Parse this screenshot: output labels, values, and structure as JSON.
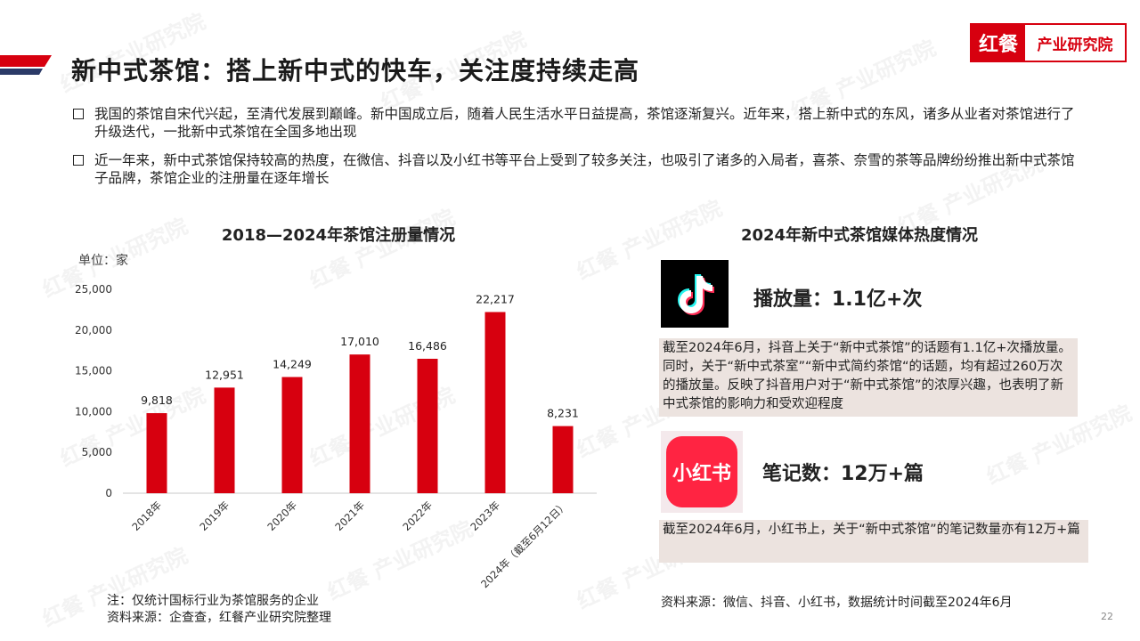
{
  "header": {
    "title": "新中式茶馆：搭上新中式的快车，关注度持续走高",
    "logo_mark": "红餐",
    "logo_text": "产业研究院"
  },
  "bullets": [
    "我国的茶馆自宋代兴起，至清代发展到巅峰。新中国成立后，随着人民生活水平日益提高，茶馆逐渐复兴。近年来，搭上新中式的东风，诸多从业者对茶馆进行了升级迭代，一批新中式茶馆在全国多地出现",
    "近一年来，新中式茶馆保持较高的热度，在微信、抖音以及小红书等平台上受到了较多关注，也吸引了诸多的入局者，喜茶、奈雪的茶等品牌纷纷推出新中式茶馆子品牌，茶馆企业的注册量在逐年增长"
  ],
  "chart_data": {
    "type": "bar",
    "title": "2018—2024年茶馆注册量情况",
    "unit_label": "单位：家",
    "categories": [
      "2018年",
      "2019年",
      "2020年",
      "2021年",
      "2022年",
      "2023年",
      "2024年（截至6月12日）"
    ],
    "values": [
      9818,
      12951,
      14249,
      17010,
      16486,
      22217,
      8231
    ],
    "value_labels": [
      "9,818",
      "12,951",
      "14,249",
      "17,010",
      "16,486",
      "22,217",
      "8,231"
    ],
    "yticks": [
      "0",
      "5,000",
      "10,000",
      "15,000",
      "20,000",
      "25,000"
    ],
    "ylim": [
      0,
      25000
    ],
    "bar_color": "#d7000f",
    "grid": false
  },
  "chart_note": {
    "line1": "注：仅统计国标行业为茶馆服务的企业",
    "line2": "资料来源：企查查，红餐产业研究院整理"
  },
  "media": {
    "title": "2024年新中式茶馆媒体热度情况",
    "douyin_metric": "播放量：1.1亿+次",
    "douyin_desc": "截至2024年6月，抖音上关于“新中式茶馆”的话题有1.1亿+次播放量。同时，关于“新中式茶室”“新中式简约茶馆“的话题，均有超过260万次的播放量。反映了抖音用户对于“新中式茶馆”的浓厚兴趣，也表明了新中式茶馆的影响力和受欢迎程度",
    "xhs_icon_text": "小红书",
    "xhs_metric": "笔记数：12万+篇",
    "xhs_desc": "截至2024年6月，小红书上，关于“新中式茶馆”的笔记数量亦有12万+篇",
    "source": "资料来源：微信、抖音、小红书，数据统计时间截至2024年6月"
  },
  "page_number": "22",
  "watermark": "红餐 产业研究院",
  "colors": {
    "accent": "#d7000f",
    "navy": "#2b3a67",
    "desc_bg": "#ece3df"
  }
}
